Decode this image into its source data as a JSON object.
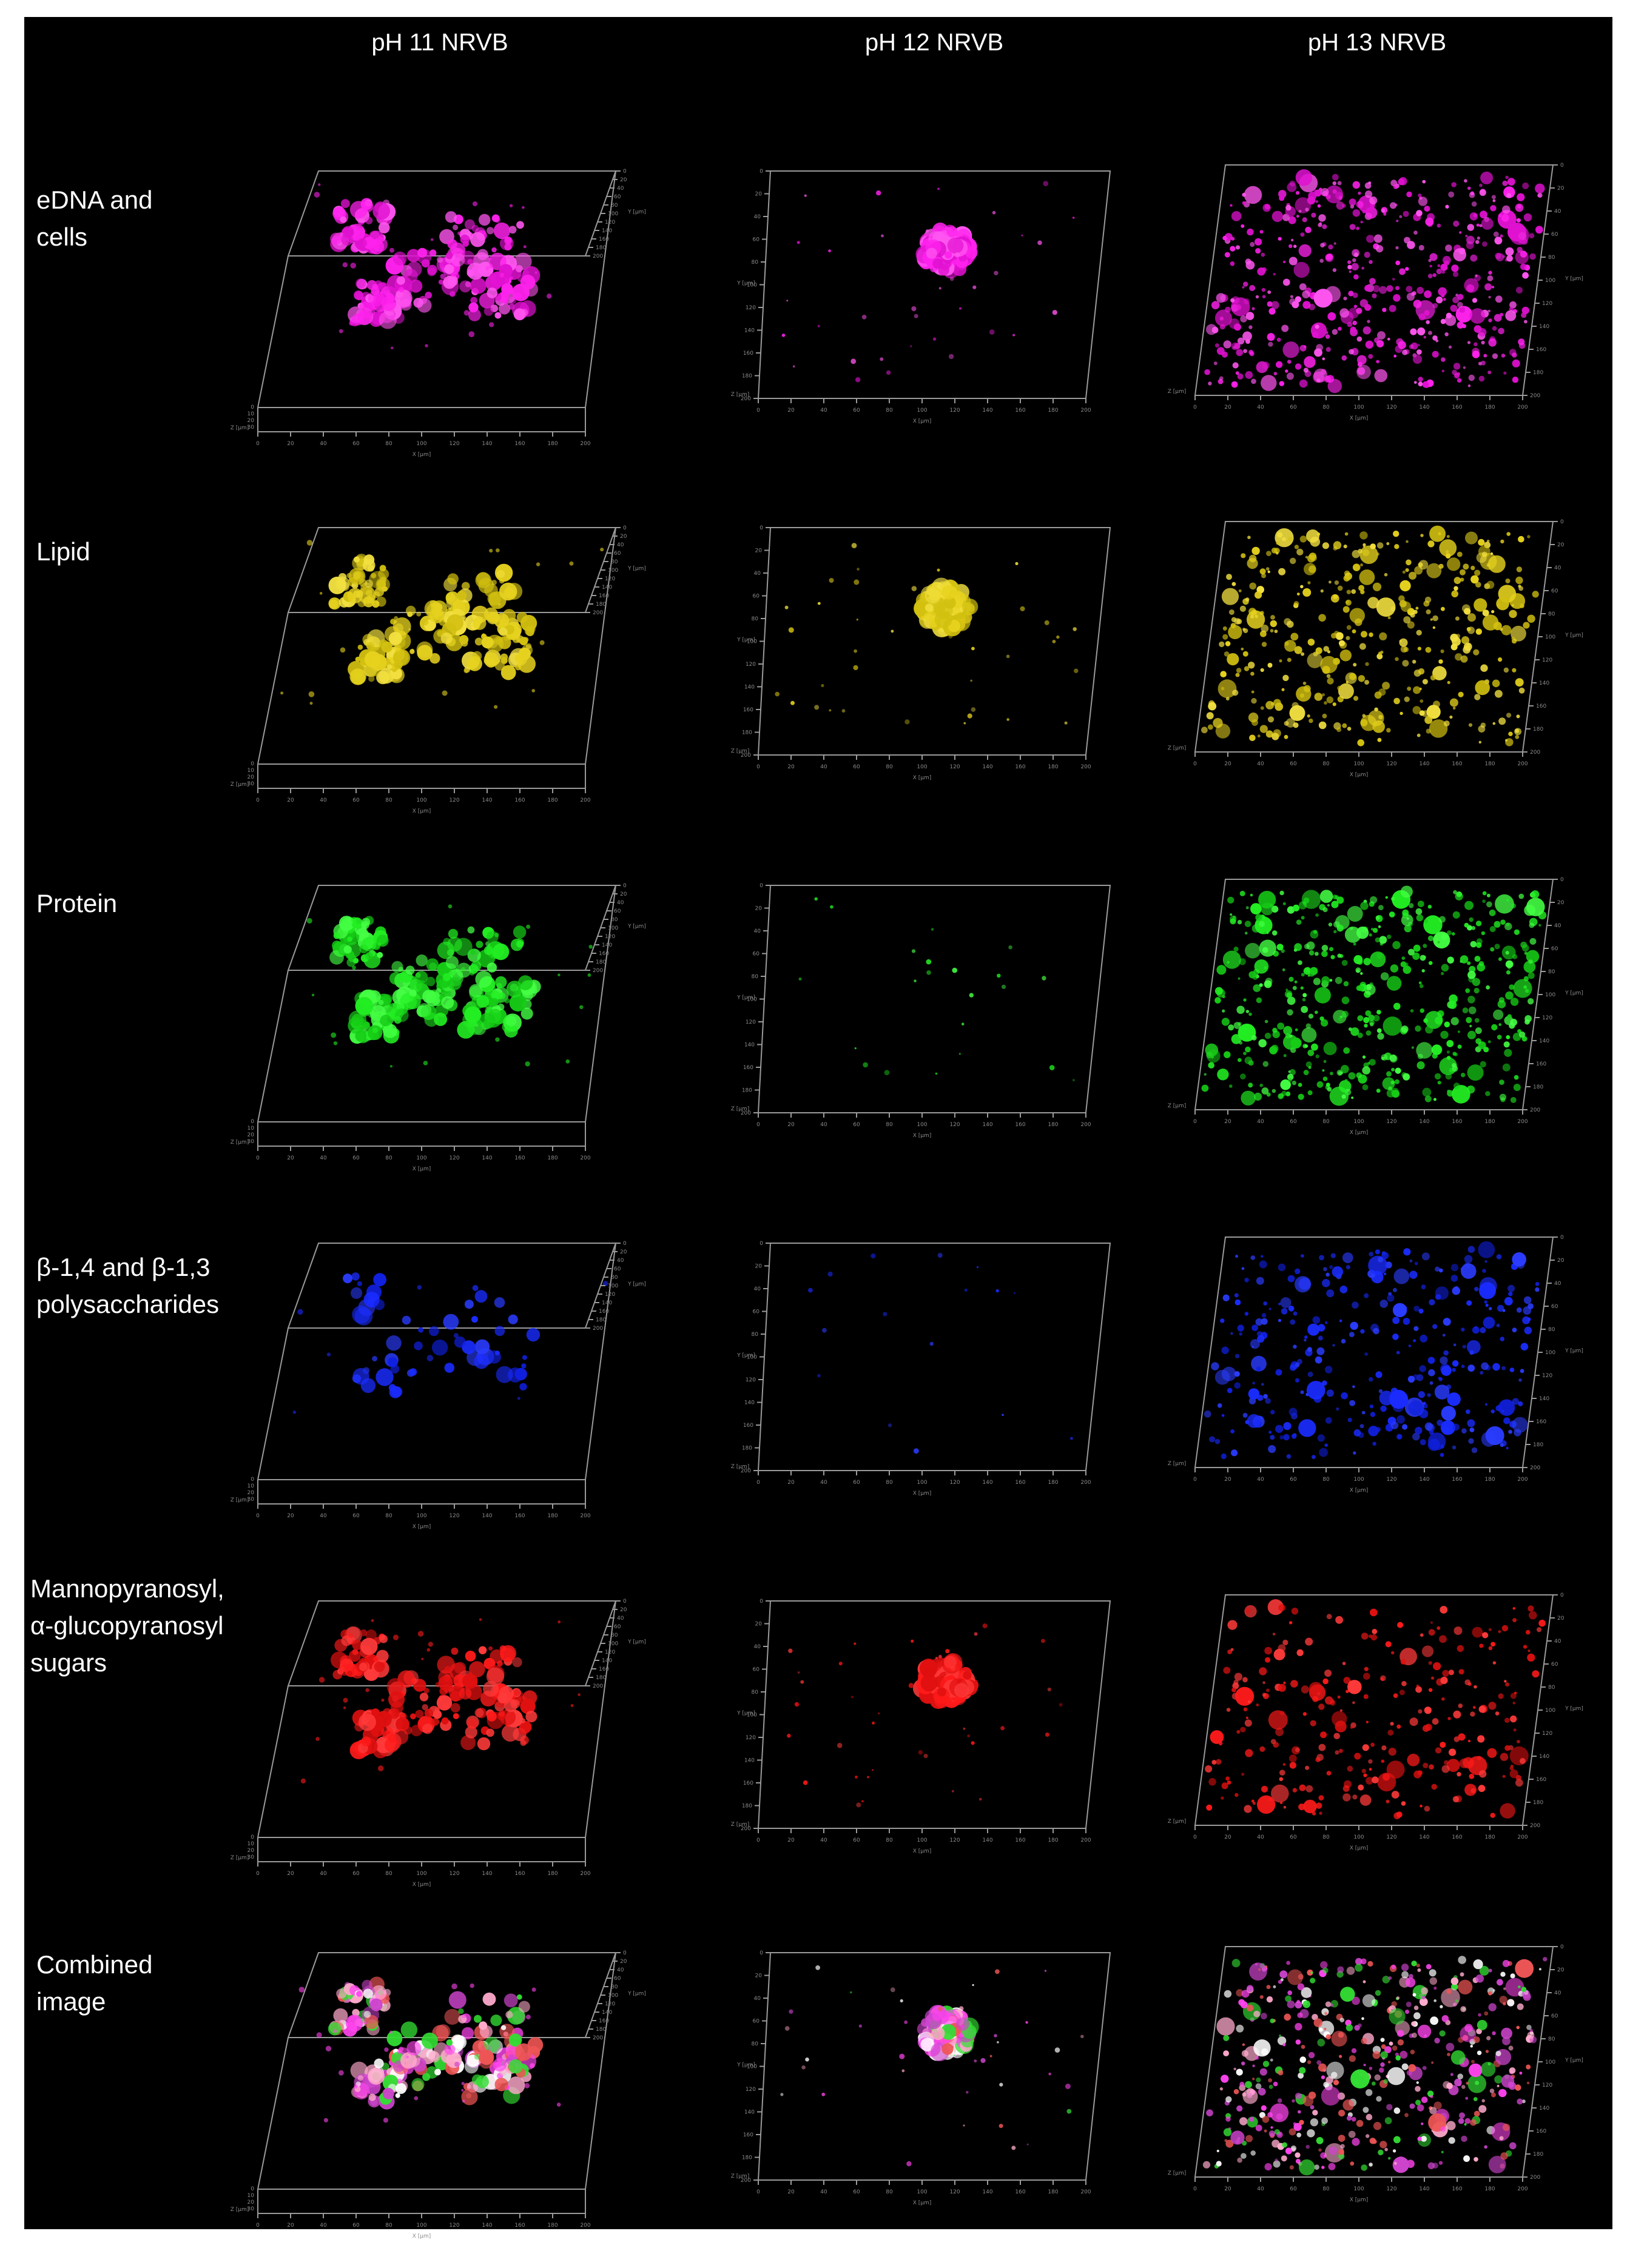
{
  "figure": {
    "columns": [
      {
        "id": "ph11",
        "title": "pH 11 NRVB",
        "layout": "box",
        "distribution": "aggregate"
      },
      {
        "id": "ph12",
        "title": "pH 12 NRVB",
        "layout": "flat",
        "distribution": "central"
      },
      {
        "id": "ph13",
        "title": "pH 13 NRVB",
        "layout": "slanted",
        "distribution": "dense"
      }
    ],
    "rows": [
      {
        "id": "edna",
        "lines": [
          "eDNA and",
          "cells"
        ],
        "color": "#ff22ee",
        "colors": [
          "#ff22ee",
          "#e011d0",
          "#ff55f0"
        ],
        "density": [
          1.0,
          0.9,
          1.0
        ]
      },
      {
        "id": "lipid",
        "lines": [
          "Lipid"
        ],
        "color": "#e6d21e",
        "colors": [
          "#e6d21e",
          "#d2c010",
          "#f2e040"
        ],
        "density": [
          1.0,
          0.9,
          0.8
        ]
      },
      {
        "id": "protein",
        "lines": [
          "Protein"
        ],
        "color": "#22ee22",
        "colors": [
          "#22ee22",
          "#16cc16",
          "#44ff44"
        ],
        "density": [
          1.0,
          0.35,
          1.0
        ]
      },
      {
        "id": "polysaccharides",
        "lines": [
          "β-1,4 and β-1,3",
          "polysaccharides"
        ],
        "color": "#1a2cff",
        "colors": [
          "#1a2cff",
          "#1020e0",
          "#2a3cff"
        ],
        "density": [
          0.25,
          0.15,
          0.65
        ]
      },
      {
        "id": "sugars",
        "lines": [
          "Mannopyranosyl,",
          "α-glucopyranosyl",
          "sugars"
        ],
        "color": "#ff1a1a",
        "colors": [
          "#ff1a1a",
          "#e01010",
          "#ff3a3a"
        ],
        "density": [
          0.85,
          0.9,
          0.55
        ]
      },
      {
        "id": "combined",
        "lines": [
          "Combined",
          "image"
        ],
        "color": "#ff66cc",
        "colors": [
          "#ff44ee",
          "#ee5555",
          "#33dd33",
          "#ffaacc",
          "#ffffff",
          "#cc44cc"
        ],
        "density": [
          1.0,
          0.9,
          1.0
        ]
      }
    ],
    "axis": {
      "x_label": "X [µm]",
      "y_label": "Y [µm]",
      "z_label": "Z [µm]",
      "x_ticks": [
        "0",
        "20",
        "40",
        "60",
        "80",
        "100",
        "120",
        "140",
        "160",
        "180",
        "200"
      ],
      "y_ticks": [
        "0",
        "20",
        "40",
        "60",
        "80",
        "100",
        "120",
        "140",
        "160",
        "180",
        "200"
      ],
      "z_ticks": [
        "0",
        "10",
        "20",
        "30"
      ]
    }
  }
}
